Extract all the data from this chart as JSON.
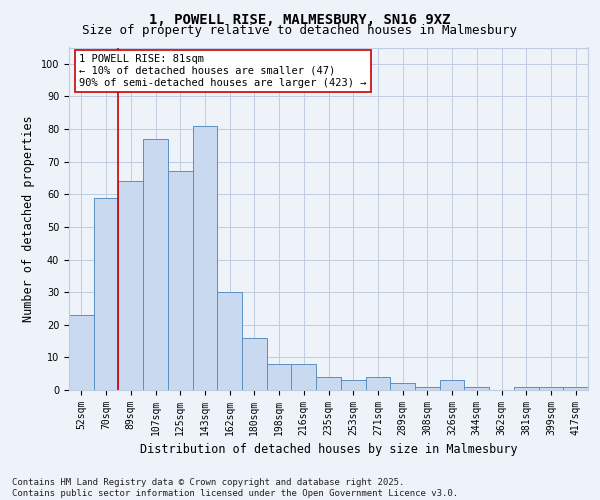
{
  "title_line1": "1, POWELL RISE, MALMESBURY, SN16 9XZ",
  "title_line2": "Size of property relative to detached houses in Malmesbury",
  "xlabel": "Distribution of detached houses by size in Malmesbury",
  "ylabel": "Number of detached properties",
  "categories": [
    "52sqm",
    "70sqm",
    "89sqm",
    "107sqm",
    "125sqm",
    "143sqm",
    "162sqm",
    "180sqm",
    "198sqm",
    "216sqm",
    "235sqm",
    "253sqm",
    "271sqm",
    "289sqm",
    "308sqm",
    "326sqm",
    "344sqm",
    "362sqm",
    "381sqm",
    "399sqm",
    "417sqm"
  ],
  "values": [
    23,
    59,
    64,
    77,
    67,
    81,
    30,
    16,
    8,
    8,
    4,
    3,
    4,
    2,
    1,
    3,
    1,
    0,
    1,
    1,
    1
  ],
  "bar_color": "#c8d9f0",
  "bar_edge_color": "#5a8fc3",
  "vline_x": 1.5,
  "vline_color": "#cc0000",
  "annotation_text": "1 POWELL RISE: 81sqm\n← 10% of detached houses are smaller (47)\n90% of semi-detached houses are larger (423) →",
  "ylim": [
    0,
    105
  ],
  "yticks": [
    0,
    10,
    20,
    30,
    40,
    50,
    60,
    70,
    80,
    90,
    100
  ],
  "footer": "Contains HM Land Registry data © Crown copyright and database right 2025.\nContains public sector information licensed under the Open Government Licence v3.0.",
  "background_color": "#eef2f9",
  "plot_background_color": "#eef2f9",
  "grid_color": "#c0cce0",
  "title_fontsize": 10,
  "subtitle_fontsize": 9,
  "axis_label_fontsize": 8.5,
  "tick_fontsize": 7,
  "annotation_fontsize": 7.5,
  "footer_fontsize": 6.5
}
